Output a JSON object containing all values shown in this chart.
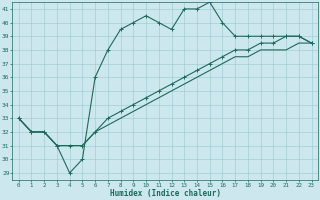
{
  "title": "",
  "xlabel": "Humidex (Indice chaleur)",
  "xlim": [
    -0.5,
    23.5
  ],
  "ylim": [
    28.5,
    41.5
  ],
  "xticks": [
    0,
    1,
    2,
    3,
    4,
    5,
    6,
    7,
    8,
    9,
    10,
    11,
    12,
    13,
    14,
    15,
    16,
    17,
    18,
    19,
    20,
    21,
    22,
    23
  ],
  "yticks": [
    29,
    30,
    31,
    32,
    33,
    34,
    35,
    36,
    37,
    38,
    39,
    40,
    41
  ],
  "background_color": "#cce8ee",
  "grid_color": "#9ac8d0",
  "line_color": "#1a6b5a",
  "line1_x": [
    0,
    1,
    2,
    3,
    4,
    5,
    6,
    7,
    8,
    9,
    10,
    11,
    12,
    13,
    14,
    15,
    16,
    17,
    18,
    19,
    20,
    21,
    22,
    23
  ],
  "line1_y": [
    33,
    32,
    32,
    31,
    29,
    30,
    36,
    38,
    39.5,
    40,
    40.5,
    40,
    39.5,
    41,
    41,
    41.5,
    40,
    39,
    39,
    39,
    39,
    39,
    39,
    38.5
  ],
  "line2_x": [
    0,
    1,
    2,
    3,
    4,
    5,
    6,
    7,
    8,
    9,
    10,
    11,
    12,
    13,
    14,
    15,
    16,
    17,
    18,
    19,
    20,
    21,
    22,
    23
  ],
  "line2_y": [
    33,
    32,
    32,
    31,
    31,
    31,
    32,
    33,
    33.5,
    34,
    34.5,
    35,
    35.5,
    36,
    36.5,
    37,
    37.5,
    38,
    38,
    38.5,
    38.5,
    39,
    39,
    38.5
  ],
  "line3_x": [
    0,
    1,
    2,
    3,
    4,
    5,
    6,
    7,
    8,
    9,
    10,
    11,
    12,
    13,
    14,
    15,
    16,
    17,
    18,
    19,
    20,
    21,
    22,
    23
  ],
  "line3_y": [
    33,
    32,
    32,
    31,
    31,
    31,
    32,
    32.5,
    33,
    33.5,
    34,
    34.5,
    35,
    35.5,
    36,
    36.5,
    37,
    37.5,
    37.5,
    38,
    38,
    38,
    38.5,
    38.5
  ],
  "figsize": [
    3.2,
    2.0
  ],
  "dpi": 100
}
